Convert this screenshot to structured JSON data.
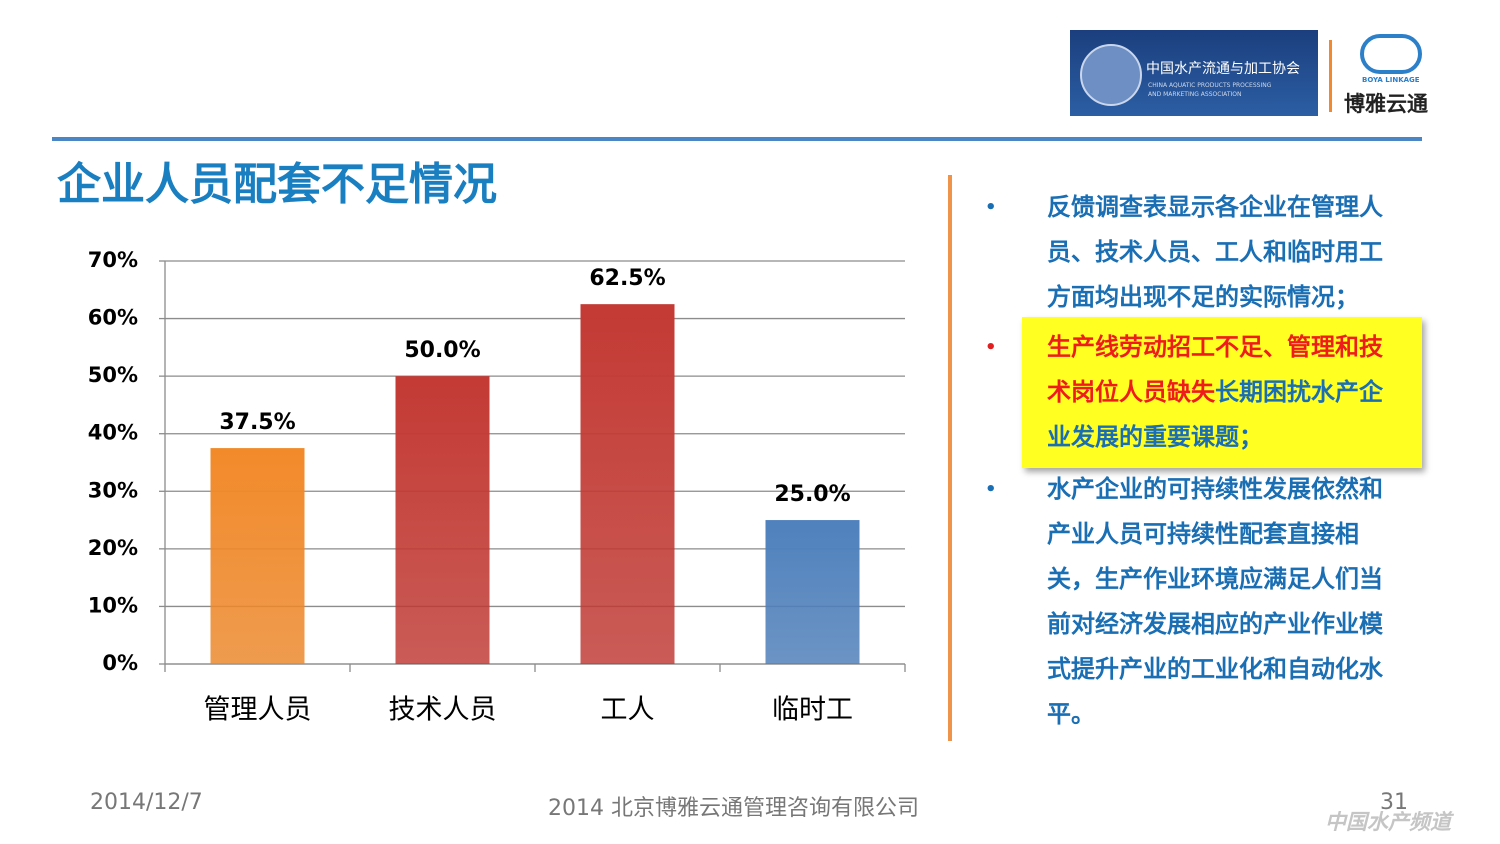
{
  "header": {
    "logo_cn": "中国水产流通与加工协会",
    "logo_en_1": "CHINA AQUATIC PRODUCTS PROCESSING",
    "logo_en_2": "AND MARKETING ASSOCIATION",
    "brand_en": "BOYA LINKAGE",
    "brand_cn": "博雅云通"
  },
  "title": "企业人员配套不足情况",
  "chart_data": {
    "type": "bar",
    "categories": [
      "管理人员",
      "技术人员",
      "工人",
      "临时工"
    ],
    "values": [
      37.5,
      50.0,
      62.5,
      25.0
    ],
    "value_labels": [
      "37.5%",
      "50.0%",
      "62.5%",
      "25.0%"
    ],
    "colors": [
      "#f28a2a",
      "#c43a34",
      "#c43a34",
      "#4f81bd"
    ],
    "ylim": [
      0,
      70
    ],
    "yticks": [
      {
        "value": 0,
        "label": "0%"
      },
      {
        "value": 10,
        "label": "10%"
      },
      {
        "value": 20,
        "label": "20%"
      },
      {
        "value": 30,
        "label": "30%"
      },
      {
        "value": 40,
        "label": "40%"
      },
      {
        "value": 50,
        "label": "50%"
      },
      {
        "value": 60,
        "label": "60%"
      },
      {
        "value": 70,
        "label": "70%"
      }
    ],
    "grid": true
  },
  "bullets": [
    [
      "反馈调查表显示各企业在管理人员、技术人员、工人和临时用工方面均出现不足的实际情况；"
    ],
    [
      "生产线劳动招工不足、管理和技术岗位人员缺失",
      "长期困扰水产企业发展的重要课题；"
    ],
    [
      "水产企业的可持续性发展依然和产业人员可持续性配套直接相关，生产作业环境应满足人们当前对经济发展相应的产业作业模式提升产业的工业化和自动化水平。"
    ]
  ],
  "footer": {
    "date": "2014/12/7",
    "company": "2014 北京博雅云通管理咨询有限公司",
    "page": "31",
    "watermark": "中国水产频道"
  }
}
